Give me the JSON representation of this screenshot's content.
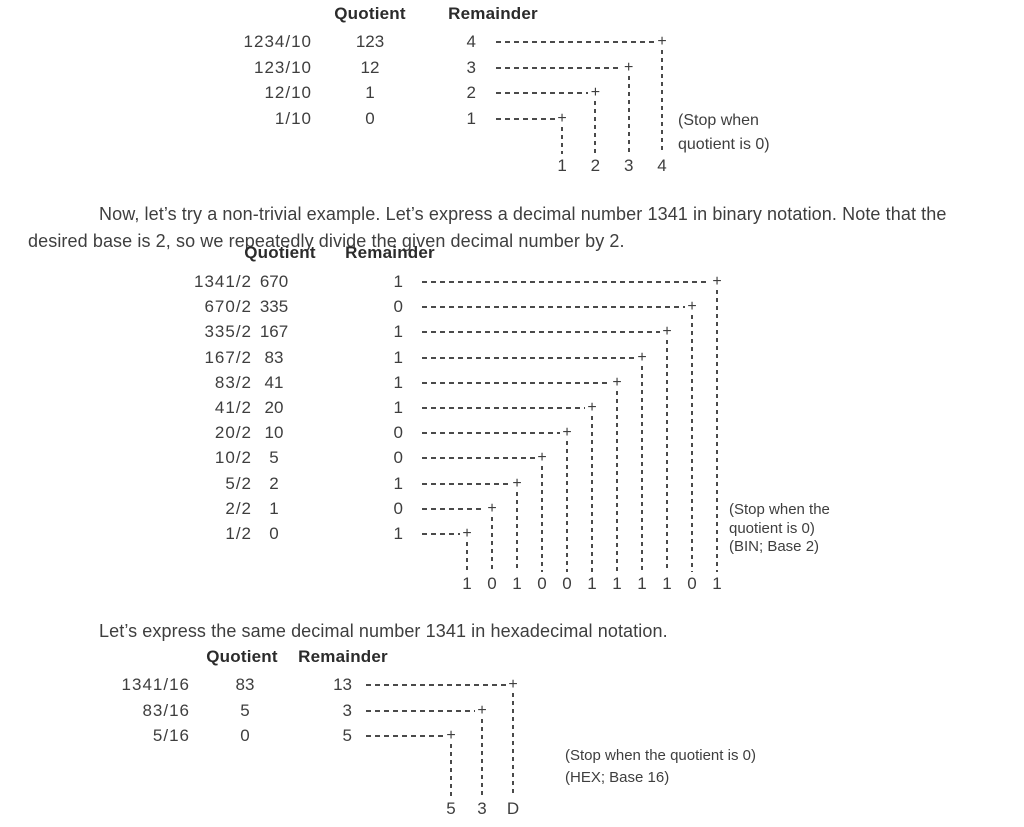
{
  "page": {
    "background": "#ffffff",
    "text_color": "#3e3e3e",
    "dash_color": "#4a4a4a"
  },
  "paragraphs": {
    "binary_intro": "Now, let’s try a non-trivial example. Let’s express a decimal number 1341 in binary notation. Note that the desired base is 2, so we repeatedly divide the given decimal number by 2.",
    "hex_intro": "Let’s express the same decimal number 1341 in hexadecimal notation."
  },
  "diagrams": [
    {
      "id": "decimal",
      "quotient_header": "Quotient",
      "remainder_header": "Remainder",
      "rows": [
        {
          "expression": "1234/10",
          "quotient": "123",
          "remainder": "4"
        },
        {
          "expression": "123/10",
          "quotient": "12",
          "remainder": "3"
        },
        {
          "expression": "12/10",
          "quotient": "1",
          "remainder": "2"
        },
        {
          "expression": "1/10",
          "quotient": "0",
          "remainder": "1"
        }
      ],
      "result_digits": [
        "1",
        "2",
        "3",
        "4"
      ],
      "note_lines": [
        "(Stop when",
        "quotient is 0)"
      ]
    },
    {
      "id": "binary",
      "quotient_header": "Quotient",
      "remainder_header": "Remainder",
      "rows": [
        {
          "expression": "1341/2",
          "quotient": "670",
          "remainder": "1"
        },
        {
          "expression": "670/2",
          "quotient": "335",
          "remainder": "0"
        },
        {
          "expression": "335/2",
          "quotient": "167",
          "remainder": "1"
        },
        {
          "expression": "167/2",
          "quotient": "83",
          "remainder": "1"
        },
        {
          "expression": "83/2",
          "quotient": "41",
          "remainder": "1"
        },
        {
          "expression": "41/2",
          "quotient": "20",
          "remainder": "1"
        },
        {
          "expression": "20/2",
          "quotient": "10",
          "remainder": "0"
        },
        {
          "expression": "10/2",
          "quotient": "5",
          "remainder": "0"
        },
        {
          "expression": "5/2",
          "quotient": "2",
          "remainder": "1"
        },
        {
          "expression": "2/2",
          "quotient": "1",
          "remainder": "0"
        },
        {
          "expression": "1/2",
          "quotient": "0",
          "remainder": "1"
        }
      ],
      "result_digits": [
        "1",
        "0",
        "1",
        "0",
        "0",
        "1",
        "1",
        "1",
        "1",
        "0",
        "1"
      ],
      "note_lines": [
        "(Stop when the",
        "quotient is 0)",
        "(BIN; Base 2)"
      ]
    },
    {
      "id": "hex",
      "quotient_header": "Quotient",
      "remainder_header": "Remainder",
      "rows": [
        {
          "expression": "1341/16",
          "quotient": "83",
          "remainder": "13"
        },
        {
          "expression": "83/16",
          "quotient": "5",
          "remainder": "3"
        },
        {
          "expression": "5/16",
          "quotient": "0",
          "remainder": "5"
        }
      ],
      "result_digits": [
        "5",
        "3",
        "D"
      ],
      "note_lines": [
        "(Stop when the quotient is 0)",
        "(HEX; Base 16)"
      ]
    }
  ]
}
